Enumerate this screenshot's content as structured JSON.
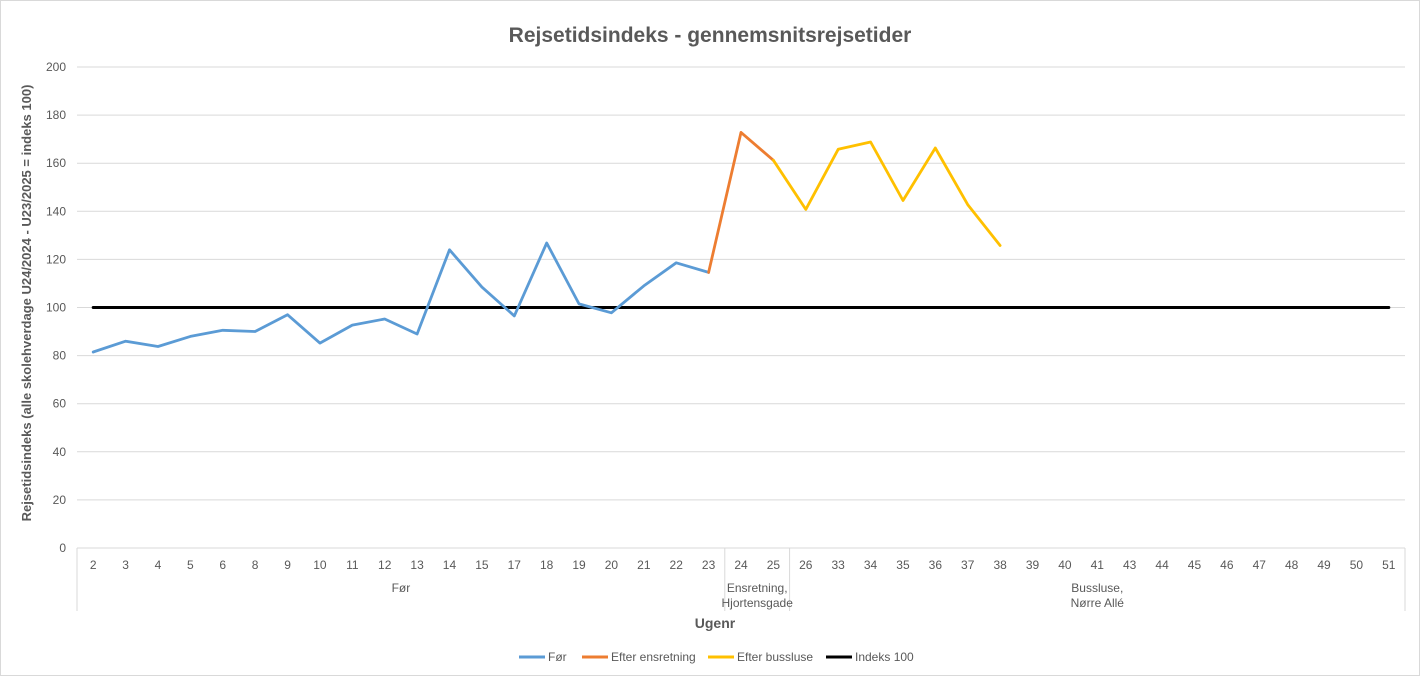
{
  "chart_data": {
    "type": "line",
    "title": "Rejsetidsindeks - gennemsnitsrejsetider",
    "xlabel": "Ugenr",
    "ylabel": "Rejsetidsindeks (alle skolehverdage U24/2024 - U23/2025 = indeks 100)",
    "ylim": [
      0,
      200
    ],
    "yticks": [
      0,
      20,
      40,
      60,
      80,
      100,
      120,
      140,
      160,
      180,
      200
    ],
    "grid": true,
    "legend_position": "bottom",
    "categories": [
      "2",
      "3",
      "4",
      "5",
      "6",
      "8",
      "9",
      "10",
      "11",
      "12",
      "13",
      "14",
      "15",
      "17",
      "18",
      "19",
      "20",
      "21",
      "22",
      "23",
      "24",
      "25",
      "26",
      "33",
      "34",
      "35",
      "36",
      "37",
      "38",
      "39",
      "40",
      "41",
      "43",
      "44",
      "45",
      "46",
      "47",
      "48",
      "49",
      "50",
      "51"
    ],
    "groups": [
      {
        "label": "Før",
        "start": 0,
        "end": 19
      },
      {
        "label": "Ensretning, Hjortensgade",
        "start": 20,
        "end": 21
      },
      {
        "label": "Bussluse, Nørre Allé",
        "start": 22,
        "end": 40
      }
    ],
    "series": [
      {
        "name": "Før",
        "color": "#5b9bd5",
        "values": [
          81.5,
          86,
          83.8,
          88,
          90.5,
          90,
          97,
          85.2,
          92.7,
          95.2,
          89,
          124,
          108.5,
          96.5,
          126.8,
          101.5,
          97.8,
          109,
          118.6,
          114.6,
          null,
          null,
          null,
          null,
          null,
          null,
          null,
          null,
          null,
          null,
          null,
          null,
          null,
          null,
          null,
          null,
          null,
          null,
          null,
          null,
          null
        ]
      },
      {
        "name": "Efter ensretning",
        "color": "#ed7d31",
        "values": [
          null,
          null,
          null,
          null,
          null,
          null,
          null,
          null,
          null,
          null,
          null,
          null,
          null,
          null,
          null,
          null,
          null,
          null,
          null,
          114.6,
          172.8,
          161.2,
          null,
          null,
          null,
          null,
          null,
          null,
          null,
          null,
          null,
          null,
          null,
          null,
          null,
          null,
          null,
          null,
          null,
          null,
          null
        ]
      },
      {
        "name": "Efter bussluse",
        "color": "#ffc000",
        "values": [
          null,
          null,
          null,
          null,
          null,
          null,
          null,
          null,
          null,
          null,
          null,
          null,
          null,
          null,
          null,
          null,
          null,
          null,
          null,
          null,
          null,
          161.2,
          140.8,
          165.8,
          168.8,
          144.5,
          166.3,
          142.8,
          125.8,
          null,
          null,
          null,
          null,
          null,
          null,
          null,
          null,
          null,
          null,
          null,
          null
        ]
      },
      {
        "name": "Indeks 100",
        "color": "#000000",
        "values": [
          100,
          100,
          100,
          100,
          100,
          100,
          100,
          100,
          100,
          100,
          100,
          100,
          100,
          100,
          100,
          100,
          100,
          100,
          100,
          100,
          100,
          100,
          100,
          100,
          100,
          100,
          100,
          100,
          100,
          100,
          100,
          100,
          100,
          100,
          100,
          100,
          100,
          100,
          100,
          100,
          100
        ]
      }
    ]
  }
}
